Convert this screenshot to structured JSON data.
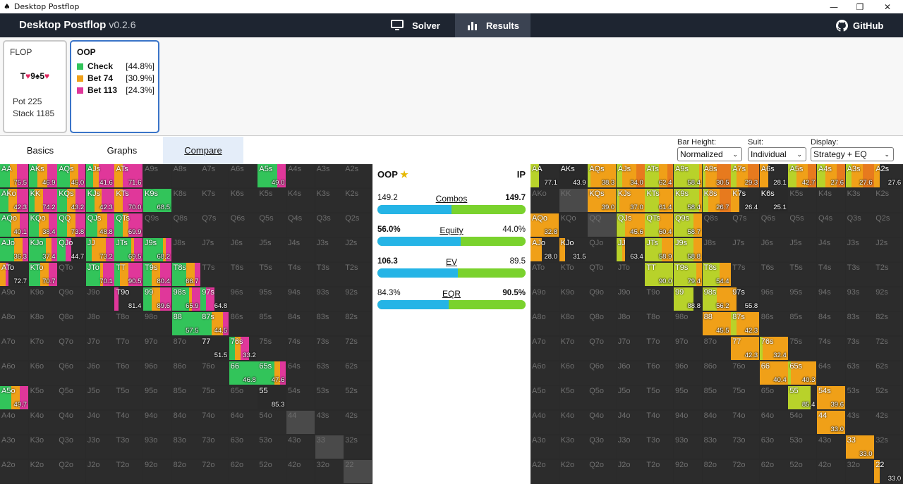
{
  "window": {
    "title": "Desktop Postflop",
    "controls": [
      "—",
      "❐",
      "✕"
    ]
  },
  "header": {
    "app_name": "Desktop Postflop",
    "version": "v0.2.6",
    "tabs": [
      {
        "label": "Solver",
        "icon": "monitor-icon"
      },
      {
        "label": "Results",
        "icon": "bar-chart-icon"
      }
    ],
    "github_label": "GitHub"
  },
  "status": {
    "flop_label": "FLOP",
    "board": [
      {
        "rank": "T",
        "suit": "♥",
        "color": "#e0245e"
      },
      {
        "rank": "9",
        "suit": "♠",
        "color": "#111111"
      },
      {
        "rank": "5",
        "suit": "♥",
        "color": "#e0245e"
      }
    ],
    "pot": "Pot 225",
    "stack": "Stack 1185",
    "player": "OOP",
    "actions": [
      {
        "name": "Check",
        "pct": "[44.8%]",
        "color": "#32c45a"
      },
      {
        "name": "Bet 74",
        "pct": "[30.9%]",
        "color": "#f0a018"
      },
      {
        "name": "Bet 113",
        "pct": "[24.3%]",
        "color": "#e0379a"
      }
    ]
  },
  "tabs": [
    "Basics",
    "Graphs",
    "Compare"
  ],
  "controls": {
    "bar_height": {
      "label": "Bar Height:",
      "value": "Normalized"
    },
    "suit": {
      "label": "Suit:",
      "value": "Individual"
    },
    "display": {
      "label": "Display:",
      "value": "Strategy + EQ"
    }
  },
  "compare": {
    "left_player": "OOP",
    "right_player": "IP",
    "stats": [
      {
        "label": "Combos",
        "left": "149.2",
        "right": "149.7",
        "left_share": 0.499
      },
      {
        "label": "Equity",
        "left": "56.0%",
        "right": "44.0%",
        "left_share": 0.56
      },
      {
        "label": "EV",
        "left": "106.3",
        "right": "89.5",
        "left_share": 0.543
      },
      {
        "label": "EQR",
        "left": "84.3%",
        "right": "90.5%",
        "left_share": 0.48
      }
    ]
  },
  "colors": {
    "check": "#32c45a",
    "bet_small": "#f0a018",
    "bet_large": "#e0379a",
    "ip_check": "#b8d22a",
    "ip_bet_small": "#f0a018",
    "ip_bet_large": "#e77a1e",
    "empty": "#2c2c2c",
    "blocked": "#4a4a4a"
  },
  "ranks": [
    "A",
    "K",
    "Q",
    "J",
    "T",
    "9",
    "8",
    "7",
    "6",
    "5",
    "4",
    "3",
    "2"
  ],
  "oop_grid": {
    "AA": {
      "v": "75.5",
      "s": [
        0.35,
        0.25,
        0.4
      ]
    },
    "AKs": {
      "v": "46.9",
      "s": [
        0.3,
        0.35,
        0.35
      ]
    },
    "AQs": {
      "v": "45.0",
      "s": [
        0.45,
        0.3,
        0.25
      ]
    },
    "AJs": {
      "v": "41.6",
      "s": [
        0.25,
        0.2,
        0.55
      ]
    },
    "ATs": {
      "v": "71.6",
      "s": [
        0,
        0.3,
        0.7
      ]
    },
    "A5s": {
      "v": "49.0",
      "s": [
        0.7,
        0,
        0.3
      ]
    },
    "AKo": {
      "v": "42.3",
      "s": [
        0.3,
        0.3,
        0.4
      ]
    },
    "KK": {
      "v": "74.2",
      "s": [
        0.2,
        0.3,
        0.5
      ]
    },
    "KQs": {
      "v": "43.2",
      "s": [
        0.35,
        0.3,
        0.35
      ]
    },
    "KJs": {
      "v": "42.3",
      "s": [
        0.3,
        0.25,
        0.45
      ]
    },
    "KTs": {
      "v": "70.0",
      "s": [
        0,
        0.3,
        0.7
      ]
    },
    "K9s": {
      "v": "68.5",
      "s": [
        1,
        0,
        0
      ]
    },
    "AQo": {
      "v": "40.1",
      "s": [
        0.4,
        0.3,
        0.3
      ]
    },
    "KQo": {
      "v": "38.4",
      "s": [
        0.35,
        0.35,
        0.3
      ]
    },
    "QQ": {
      "v": "73.8",
      "s": [
        0.35,
        0.3,
        0.35
      ]
    },
    "QJs": {
      "v": "48.8",
      "s": [
        0.4,
        0.35,
        0.25
      ]
    },
    "QTs": {
      "v": "69.9",
      "s": [
        0.3,
        0.2,
        0.5
      ]
    },
    "AJo": {
      "v": "36.3",
      "s": [
        0.5,
        0.3,
        0.2
      ]
    },
    "KJo": {
      "v": "37.4",
      "s": [
        0.6,
        0.2,
        0.2
      ]
    },
    "QJo": {
      "v": "44.7",
      "s": [
        0.3,
        0,
        0.2
      ]
    },
    "JJ": {
      "v": "73.2",
      "s": [
        0.2,
        0.5,
        0.3
      ]
    },
    "JTs": {
      "v": "69.5",
      "s": [
        0.6,
        0.1,
        0.3
      ]
    },
    "J9s": {
      "v": "68.2",
      "s": [
        0.7,
        0.1,
        0.2
      ]
    },
    "ATo": {
      "v": "72.7",
      "s": [
        0,
        0.2,
        0.1
      ]
    },
    "KTo": {
      "v": "70.7",
      "s": [
        0.4,
        0.3,
        0.3
      ]
    },
    "JTo": {
      "v": "70.1",
      "s": [
        0.5,
        0.1,
        0.4
      ]
    },
    "TT": {
      "v": "90.5",
      "s": [
        0.2,
        0.3,
        0.5
      ]
    },
    "T9s": {
      "v": "80.4",
      "s": [
        0.3,
        0.3,
        0.4
      ]
    },
    "T8s": {
      "v": "66.7",
      "s": [
        0.5,
        0.3,
        0.2
      ]
    },
    "T9o": {
      "v": "81.4",
      "s": [
        0,
        0,
        0.15
      ]
    },
    "99": {
      "v": "89.6",
      "s": [
        0.3,
        0.3,
        0.4
      ]
    },
    "98s": {
      "v": "65.9",
      "s": [
        0.6,
        0.1,
        0.3
      ]
    },
    "97s": {
      "v": "64.8",
      "s": [
        0.2,
        0,
        0.3
      ]
    },
    "88": {
      "v": "57.5",
      "s": [
        1,
        0,
        0
      ]
    },
    "87s": {
      "v": "44.5",
      "s": [
        0.4,
        0.4,
        0.2
      ]
    },
    "77": {
      "v": "51.5",
      "s": [
        0,
        0,
        0
      ]
    },
    "76s": {
      "v": "33.2",
      "s": [
        0.2,
        0.2,
        0.3
      ]
    },
    "66": {
      "v": "46.8",
      "s": [
        1,
        0,
        0
      ]
    },
    "65s": {
      "v": "47.6",
      "s": [
        0.6,
        0.2,
        0.2
      ]
    },
    "A5o": {
      "v": "49.7",
      "s": [
        0.4,
        0.3,
        0.3
      ]
    },
    "55": {
      "v": "85.3",
      "s": [
        0,
        0,
        0
      ]
    }
  },
  "ip_grid": {
    "AA": {
      "v": "77.1",
      "s": [
        0.3,
        0,
        0
      ]
    },
    "AKs": {
      "v": "43.9",
      "s": [
        0,
        0,
        0
      ]
    },
    "AQs": {
      "v": "38.3",
      "s": [
        0.1,
        0.9,
        0
      ]
    },
    "AJs": {
      "v": "34.0",
      "s": [
        0.2,
        0.5,
        0.3
      ]
    },
    "ATs": {
      "v": "62.4",
      "s": [
        0.5,
        0.3,
        0.2
      ]
    },
    "A9s": {
      "v": "58.4",
      "s": [
        0.9,
        0.1,
        0
      ]
    },
    "A8s": {
      "v": "30.5",
      "s": [
        0.1,
        0.4,
        0.5
      ]
    },
    "A7s": {
      "v": "29.3",
      "s": [
        0.2,
        0.4,
        0.4
      ]
    },
    "A6s": {
      "v": "28.1",
      "s": [
        0,
        0.3,
        0
      ]
    },
    "A5s": {
      "v": "42.7",
      "s": [
        0.3,
        0.4,
        0.3
      ]
    },
    "A4s": {
      "v": "27.6",
      "s": [
        0.3,
        0.4,
        0.3
      ]
    },
    "A3s": {
      "v": "27.6",
      "s": [
        0.2,
        0.4,
        0.4
      ]
    },
    "A2s": {
      "v": "27.6",
      "s": [
        0,
        0.2,
        0
      ]
    },
    "KQs": {
      "v": "39.0",
      "s": [
        0,
        1,
        0
      ]
    },
    "KJs": {
      "v": "37.0",
      "s": [
        0.1,
        0.9,
        0
      ]
    },
    "KTs": {
      "v": "61.4",
      "s": [
        0.5,
        0.5,
        0
      ]
    },
    "K9s": {
      "v": "58.4",
      "s": [
        0.9,
        0.1,
        0
      ]
    },
    "K8s": {
      "v": "26.7",
      "s": [
        0.2,
        0.4,
        0.4
      ]
    },
    "K7s": {
      "v": "26.4",
      "s": [
        0,
        0.3,
        0
      ]
    },
    "K6s": {
      "v": "25.1",
      "s": [
        0,
        0,
        0
      ]
    },
    "AQo": {
      "v": "32.8",
      "s": [
        0,
        1,
        0
      ]
    },
    "QJs": {
      "v": "45.6",
      "s": [
        0.3,
        0.7,
        0
      ]
    },
    "QTs": {
      "v": "60.4",
      "s": [
        0.5,
        0.5,
        0
      ]
    },
    "Q9s": {
      "v": "58.7",
      "s": [
        0.7,
        0.3,
        0
      ]
    },
    "AJo": {
      "v": "28.0",
      "s": [
        0,
        0.4,
        0
      ]
    },
    "KJo": {
      "v": "31.5",
      "s": [
        0,
        0.2,
        0
      ]
    },
    "JJ": {
      "v": "63.4",
      "s": [
        0.2,
        0.1,
        0
      ]
    },
    "JTs": {
      "v": "58.9",
      "s": [
        0.6,
        0.4,
        0
      ]
    },
    "J9s": {
      "v": "58.8",
      "s": [
        0.7,
        0.3,
        0
      ]
    },
    "TT": {
      "v": "90.0",
      "s": [
        1,
        0,
        0
      ]
    },
    "T9s": {
      "v": "79.4",
      "s": [
        0.8,
        0.2,
        0
      ]
    },
    "T8s": {
      "v": "54.4",
      "s": [
        0.6,
        0.4,
        0
      ]
    },
    "99": {
      "v": "88.8",
      "s": [
        0.7,
        0,
        0
      ]
    },
    "98s": {
      "v": "56.2",
      "s": [
        0.5,
        0.5,
        0
      ]
    },
    "97s": {
      "v": "55.8",
      "s": [
        0,
        0.2,
        0
      ]
    },
    "88": {
      "v": "45.5",
      "s": [
        0,
        1,
        0
      ]
    },
    "87s": {
      "v": "42.3",
      "s": [
        0.2,
        0.8,
        0
      ]
    },
    "77": {
      "v": "42.3",
      "s": [
        0,
        1,
        0
      ]
    },
    "76s": {
      "v": "32.4",
      "s": [
        0.1,
        0.9,
        0
      ]
    },
    "66": {
      "v": "40.4",
      "s": [
        0,
        1,
        0
      ]
    },
    "65s": {
      "v": "40.3",
      "s": [
        0.1,
        0.9,
        0
      ]
    },
    "55": {
      "v": "85.4",
      "s": [
        0.8,
        0,
        0
      ]
    },
    "54s": {
      "v": "39.6",
      "s": [
        0,
        1,
        0
      ]
    },
    "44": {
      "v": "33.0",
      "s": [
        0,
        1,
        0
      ]
    },
    "33": {
      "v": "33.0",
      "s": [
        0,
        1,
        0
      ]
    },
    "22": {
      "v": "33.0",
      "s": [
        0,
        0.2,
        0
      ]
    }
  },
  "oop_blocked": [
    "44",
    "33",
    "22"
  ],
  "ip_blocked": [
    "KK",
    "QQ"
  ]
}
